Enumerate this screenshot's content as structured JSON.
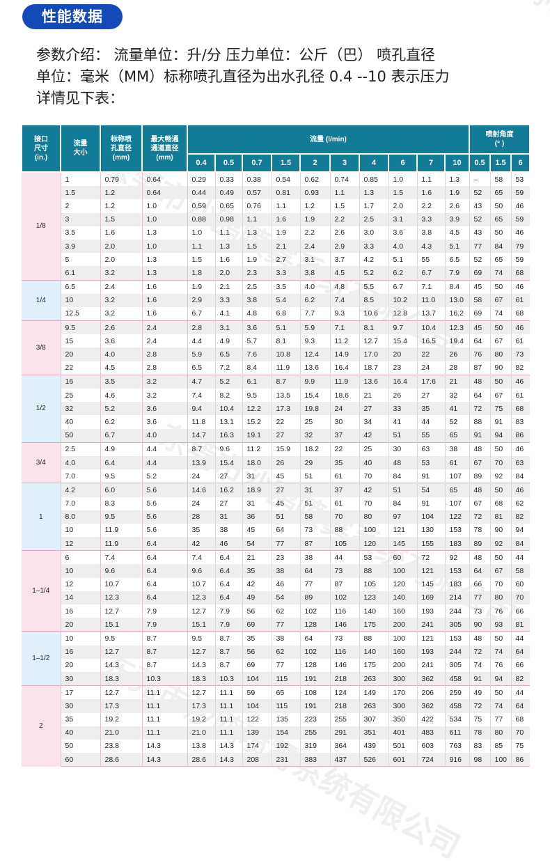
{
  "badge": {
    "title": "性能数据"
  },
  "intro": {
    "lines": [
      "参数介绍：  流量单位：升/分  压力单位：公斤（巴） 喷孔直径",
      "单位：毫米（MM）标称喷孔直径为出水孔径    0.4 --10 表示压力",
      "详情见下表："
    ]
  },
  "watermark": {
    "text": "东莞市沙鸥喷雾系统有限公司"
  },
  "table": {
    "headers": {
      "inch": "接口\n尺寸\n(in.)",
      "flow_size": "流量\n大小",
      "nozzle_dia": "标称喷\n孔直径\n(mm)",
      "passage_dia": "最大畅通\n通道直径\n(mm)",
      "flow_group": "流量  (l/min)",
      "angle_group": "喷射角度\n(° )"
    },
    "pressures": [
      "0.4",
      "0.5",
      "0.7",
      "1.5",
      "2",
      "3",
      "4",
      "6",
      "7",
      "10"
    ],
    "angle_pressures": [
      "0.5",
      "1.5",
      "6"
    ],
    "groups": [
      {
        "inch": "1/8",
        "color": "pink",
        "rows": [
          [
            "1",
            "0.79",
            "0.64",
            "0.29",
            "0.33",
            "0.38",
            "0.54",
            "0.62",
            "0.74",
            "0.85",
            "1.0",
            "1.1",
            "1.3",
            "–",
            "58",
            "53"
          ],
          [
            "1.5",
            "1.2",
            "0.64",
            "0.44",
            "0.49",
            "0.57",
            "0.81",
            "0.93",
            "1.1",
            "1.3",
            "1.5",
            "1.6",
            "1.9",
            "52",
            "65",
            "59"
          ],
          [
            "2",
            "1.2",
            "1.0",
            "0.59",
            "0.65",
            "0.76",
            "1.1",
            "1.2",
            "1.5",
            "1.7",
            "2.0",
            "2.2",
            "2.6",
            "43",
            "50",
            "46"
          ],
          [
            "3",
            "1.5",
            "1.0",
            "0.88",
            "0.98",
            "1.1",
            "1.6",
            "1.9",
            "2.2",
            "2.5",
            "3.1",
            "3.3",
            "3.9",
            "52",
            "65",
            "59"
          ],
          [
            "3.5",
            "1.6",
            "1.3",
            "1.0",
            "1.1",
            "1.3",
            "1.9",
            "2.2",
            "2.6",
            "3.0",
            "3.6",
            "3.8",
            "4.5",
            "43",
            "50",
            "46"
          ],
          [
            "3.9",
            "2.0",
            "1.0",
            "1.1",
            "1.3",
            "1.5",
            "2.1",
            "2.4",
            "2.9",
            "3.3",
            "4.0",
            "4.3",
            "5.1",
            "77",
            "84",
            "79"
          ],
          [
            "5",
            "2.0",
            "1.3",
            "1.5",
            "1.6",
            "1.9",
            "2.7",
            "3.1",
            "3.7",
            "4.2",
            "5.1",
            "55",
            "6.5",
            "52",
            "65",
            "59"
          ],
          [
            "6.1",
            "3.2",
            "1.3",
            "1.8",
            "2.0",
            "2.3",
            "3.3",
            "3.8",
            "4.5",
            "5.2",
            "6.2",
            "6.7",
            "7.9",
            "69",
            "74",
            "68"
          ]
        ]
      },
      {
        "inch": "1/4",
        "color": "blue",
        "rows": [
          [
            "6.5",
            "2.4",
            "1.6",
            "1.9",
            "2.1",
            "2.5",
            "3.5",
            "4.0",
            "4.8",
            "5.5",
            "6.7",
            "7.1",
            "8.4",
            "45",
            "50",
            "46"
          ],
          [
            "10",
            "3.2",
            "1.6",
            "2.9",
            "3.3",
            "3.8",
            "5.4",
            "6.2",
            "7.4",
            "8.5",
            "10.2",
            "11.0",
            "13.0",
            "58",
            "67",
            "61"
          ],
          [
            "12.5",
            "3.2",
            "1.6",
            "6.7",
            "4.1",
            "4.8",
            "6.8",
            "7.7",
            "9.3",
            "10.6",
            "12.8",
            "13.7",
            "16.2",
            "69",
            "74",
            "68"
          ]
        ]
      },
      {
        "inch": "3/8",
        "color": "pink",
        "rows": [
          [
            "9.5",
            "2.6",
            "2.4",
            "2.8",
            "3.1",
            "3.6",
            "5.1",
            "5.9",
            "7.1",
            "8.1",
            "9.7",
            "10.4",
            "12.3",
            "45",
            "50",
            "46"
          ],
          [
            "15",
            "3.6",
            "2.4",
            "4.4",
            "4.9",
            "5.7",
            "8.1",
            "9.3",
            "11.2",
            "12.7",
            "15.4",
            "16.5",
            "19.4",
            "64",
            "67",
            "61"
          ],
          [
            "20",
            "4.0",
            "2.8",
            "5.9",
            "6.5",
            "7.6",
            "10.8",
            "12.4",
            "14.9",
            "17.0",
            "20",
            "22",
            "26",
            "76",
            "80",
            "73"
          ],
          [
            "22",
            "4.5",
            "2.8",
            "6.5",
            "7.2",
            "8.4",
            "11.9",
            "13.6",
            "16.4",
            "18.7",
            "23",
            "24",
            "28",
            "87",
            "90",
            "82"
          ]
        ]
      },
      {
        "inch": "1/2",
        "color": "blue",
        "rows": [
          [
            "16",
            "3.5",
            "3.2",
            "4.7",
            "5.2",
            "6.1",
            "8.7",
            "9.9",
            "11.9",
            "13.6",
            "16.4",
            "17.6",
            "21",
            "48",
            "50",
            "46"
          ],
          [
            "25",
            "4.6",
            "3.2",
            "7.4",
            "8.2",
            "9.5",
            "13.5",
            "15.4",
            "18.6",
            "21",
            "26",
            "27",
            "32",
            "64",
            "67",
            "61"
          ],
          [
            "32",
            "5.2",
            "3.6",
            "9.4",
            "10.4",
            "12.2",
            "17.3",
            "19.8",
            "24",
            "27",
            "33",
            "35",
            "41",
            "72",
            "75",
            "68"
          ],
          [
            "40",
            "6.2",
            "3.6",
            "11.8",
            "13.1",
            "15.2",
            "22",
            "25",
            "30",
            "34",
            "41",
            "44",
            "52",
            "88",
            "91",
            "83"
          ],
          [
            "50",
            "6.7",
            "4.0",
            "14.7",
            "16.3",
            "19.1",
            "27",
            "32",
            "37",
            "42",
            "51",
            "55",
            "65",
            "91",
            "94",
            "86"
          ]
        ]
      },
      {
        "inch": "3/4",
        "color": "pink",
        "rows": [
          [
            "2.5",
            "4.9",
            "4.4",
            "8.7",
            "9.6",
            "11.2",
            "15.9",
            "18.2",
            "22",
            "25",
            "30",
            "63",
            "38",
            "48",
            "50",
            "46"
          ],
          [
            "4.0",
            "6.4",
            "4.4",
            "13.9",
            "15.4",
            "18.0",
            "26",
            "29",
            "35",
            "40",
            "48",
            "53",
            "61",
            "67",
            "70",
            "63"
          ],
          [
            "7.0",
            "9.5",
            "5.2",
            "24",
            "27",
            "31",
            "45",
            "51",
            "61",
            "70",
            "84",
            "91",
            "107",
            "89",
            "92",
            "84"
          ]
        ]
      },
      {
        "inch": "1",
        "color": "blue",
        "rows": [
          [
            "4.2",
            "6.0",
            "5.6",
            "14.6",
            "16.2",
            "18.9",
            "27",
            "31",
            "37",
            "42",
            "51",
            "54",
            "65",
            "48",
            "50",
            "46"
          ],
          [
            "7.0",
            "8.3",
            "5.6",
            "24",
            "27",
            "31",
            "45",
            "51",
            "61",
            "70",
            "84",
            "91",
            "107",
            "67",
            "68",
            "62"
          ],
          [
            "8.0",
            "9.5",
            "5.6",
            "28",
            "31",
            "36",
            "51",
            "58",
            "70",
            "80",
            "97",
            "104",
            "122",
            "72",
            "81",
            "82"
          ],
          [
            "10",
            "11.9",
            "5.6",
            "35",
            "38",
            "45",
            "64",
            "73",
            "88",
            "100",
            "121",
            "130",
            "153",
            "78",
            "90",
            "94"
          ],
          [
            "12",
            "11.9",
            "6.4",
            "42",
            "46",
            "54",
            "77",
            "87",
            "105",
            "120",
            "145",
            "155",
            "183",
            "89",
            "92",
            "84"
          ]
        ]
      },
      {
        "inch": "1–1/4",
        "color": "pink",
        "rows": [
          [
            "6",
            "7.4",
            "6.4",
            "7.4",
            "6.4",
            "21",
            "23",
            "38",
            "44",
            "53",
            "60",
            "72",
            "92",
            "48",
            "50",
            "44"
          ],
          [
            "10",
            "9.6",
            "6.4",
            "9.6",
            "6.4",
            "35",
            "38",
            "64",
            "73",
            "88",
            "100",
            "121",
            "153",
            "64",
            "67",
            "58"
          ],
          [
            "12",
            "10.7",
            "6.4",
            "10.7",
            "6.4",
            "42",
            "46",
            "77",
            "87",
            "105",
            "120",
            "145",
            "183",
            "66",
            "70",
            "60"
          ],
          [
            "14",
            "12.3",
            "6.4",
            "12.3",
            "6.4",
            "49",
            "54",
            "89",
            "102",
            "123",
            "140",
            "169",
            "214",
            "77",
            "80",
            "70"
          ],
          [
            "16",
            "12.7",
            "7.9",
            "12.7",
            "7.9",
            "56",
            "62",
            "102",
            "116",
            "140",
            "160",
            "193",
            "244",
            "73",
            "76",
            "66"
          ],
          [
            "20",
            "15.1",
            "7.9",
            "15.1",
            "7.9",
            "69",
            "77",
            "128",
            "146",
            "175",
            "200",
            "241",
            "305",
            "90",
            "93",
            "81"
          ]
        ]
      },
      {
        "inch": "1–1/2",
        "color": "blue",
        "rows": [
          [
            "10",
            "9.5",
            "8.7",
            "9.5",
            "8.7",
            "35",
            "38",
            "64",
            "73",
            "88",
            "100",
            "121",
            "153",
            "48",
            "50",
            "44"
          ],
          [
            "16",
            "12.7",
            "8.7",
            "12.7",
            "8.7",
            "56",
            "62",
            "102",
            "116",
            "140",
            "160",
            "193",
            "244",
            "72",
            "74",
            "64"
          ],
          [
            "20",
            "14.3",
            "8.7",
            "14.3",
            "8.7",
            "69",
            "77",
            "128",
            "146",
            "175",
            "200",
            "241",
            "305",
            "74",
            "76",
            "66"
          ],
          [
            "30",
            "18.3",
            "10.3",
            "18.3",
            "10.3",
            "104",
            "115",
            "191",
            "218",
            "263",
            "300",
            "362",
            "458",
            "91",
            "94",
            "82"
          ]
        ]
      },
      {
        "inch": "2",
        "color": "pink",
        "rows": [
          [
            "17",
            "12.7",
            "11.1",
            "12.7",
            "11.1",
            "59",
            "65",
            "108",
            "124",
            "149",
            "170",
            "206",
            "259",
            "49",
            "50",
            "44"
          ],
          [
            "30",
            "17.3",
            "11.1",
            "17.3",
            "11.1",
            "104",
            "115",
            "191",
            "218",
            "263",
            "300",
            "362",
            "458",
            "72",
            "74",
            "64"
          ],
          [
            "35",
            "19.2",
            "11.1",
            "19.2",
            "11.1",
            "122",
            "135",
            "223",
            "255",
            "307",
            "350",
            "422",
            "534",
            "75",
            "77",
            "68"
          ],
          [
            "40",
            "21.0",
            "11.1",
            "21.0",
            "11.1",
            "139",
            "154",
            "255",
            "291",
            "351",
            "401",
            "483",
            "611",
            "78",
            "80",
            "70"
          ],
          [
            "50",
            "23.8",
            "14.3",
            "13.8",
            "14.3",
            "174",
            "192",
            "319",
            "364",
            "439",
            "501",
            "603",
            "763",
            "83",
            "85",
            "75"
          ],
          [
            "60",
            "28.6",
            "14.3",
            "28.6",
            "14.3",
            "208",
            "231",
            "383",
            "437",
            "526",
            "601",
            "724",
            "916",
            "98",
            "100",
            "86"
          ]
        ]
      }
    ]
  },
  "colors": {
    "badge": "#1449b8",
    "header": "#127b97",
    "group_pink": "#fbe3ec",
    "group_blue": "#dff0fa",
    "row_alt": "#eeeeee"
  }
}
